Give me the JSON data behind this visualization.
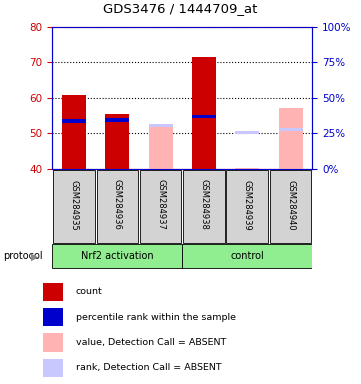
{
  "title": "GDS3476 / 1444709_at",
  "samples": [
    "GSM284935",
    "GSM284936",
    "GSM284937",
    "GSM284938",
    "GSM284939",
    "GSM284940"
  ],
  "ylim_left": [
    40,
    80
  ],
  "ylim_right": [
    0,
    100
  ],
  "yticks_left": [
    40,
    50,
    60,
    70,
    80
  ],
  "yticks_right": [
    0,
    25,
    50,
    75,
    100
  ],
  "left_axis_color": "#cc0000",
  "right_axis_color": "#0000cc",
  "present_count": [
    60.8,
    55.6,
    null,
    71.5,
    null,
    null
  ],
  "present_rank": [
    53.5,
    53.8,
    null,
    54.8,
    null,
    null
  ],
  "absent_value": [
    null,
    null,
    52.3,
    null,
    40.4,
    57.3
  ],
  "absent_rank": [
    null,
    null,
    52.2,
    null,
    50.2,
    51.2
  ],
  "bar_width": 0.55,
  "count_color": "#cc0000",
  "rank_color": "#0000cc",
  "absent_value_color": "#ffb3b3",
  "absent_rank_color": "#c8c8ff",
  "nrf2_color": "#90ee90",
  "control_color": "#90ee90",
  "legend_items": [
    {
      "label": "count",
      "color": "#cc0000"
    },
    {
      "label": "percentile rank within the sample",
      "color": "#0000cc"
    },
    {
      "label": "value, Detection Call = ABSENT",
      "color": "#ffb3b3"
    },
    {
      "label": "rank, Detection Call = ABSENT",
      "color": "#c8c8ff"
    }
  ],
  "base_value": 40
}
